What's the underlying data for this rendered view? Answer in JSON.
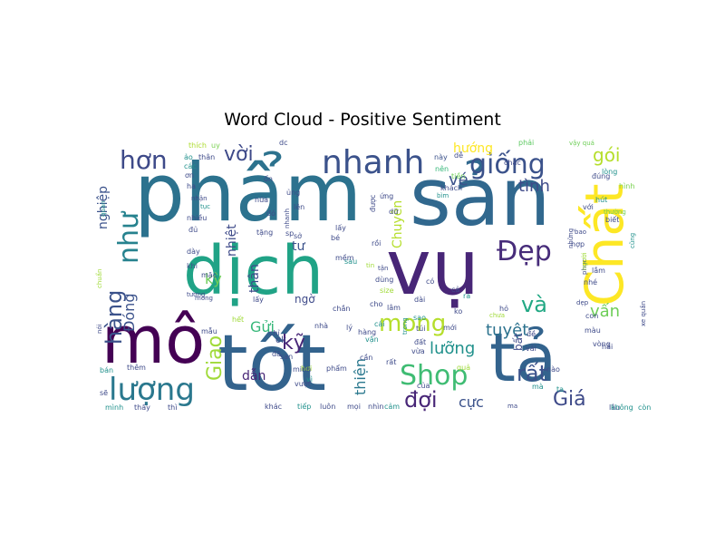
{
  "chart_data": {
    "type": "wordcloud",
    "title": "Word Cloud - Positive Sentiment",
    "colormap": "viridis",
    "background": "#ffffff",
    "words": [
      {
        "text": "phẩm",
        "size": 88,
        "color": "#2c728e",
        "rotate": 0
      },
      {
        "text": "sản",
        "size": 88,
        "color": "#31688e",
        "rotate": 0
      },
      {
        "text": "vụ",
        "size": 84,
        "color": "#482677",
        "rotate": 0
      },
      {
        "text": "tốt",
        "size": 86,
        "color": "#33638d",
        "rotate": 0
      },
      {
        "text": "dịch",
        "size": 74,
        "color": "#20a386",
        "rotate": 0
      },
      {
        "text": "mô",
        "size": 72,
        "color": "#440154",
        "rotate": 0
      },
      {
        "text": "tả",
        "size": 74,
        "color": "#33638d",
        "rotate": 0
      },
      {
        "text": "Chất",
        "size": 58,
        "color": "#fde725",
        "rotate": -90
      },
      {
        "text": "nhanh",
        "size": 36,
        "color": "#3b528b",
        "rotate": 0
      },
      {
        "text": "giống",
        "size": 30,
        "color": "#3b528b",
        "rotate": 0
      },
      {
        "text": "hơn",
        "size": 28,
        "color": "#3e4a89",
        "rotate": 0
      },
      {
        "text": "Đẹp",
        "size": 30,
        "color": "#472c7a",
        "rotate": 0
      },
      {
        "text": "lượng",
        "size": 34,
        "color": "#2a788e",
        "rotate": 0
      },
      {
        "text": "Shop",
        "size": 30,
        "color": "#3fbc73",
        "rotate": 0
      },
      {
        "text": "mong",
        "size": 26,
        "color": "#b5de2b",
        "rotate": 0
      },
      {
        "text": "như",
        "size": 30,
        "color": "#26828e",
        "rotate": -90
      },
      {
        "text": "hàng",
        "size": 24,
        "color": "#3b528b",
        "rotate": -90
      },
      {
        "text": "vời",
        "size": 22,
        "color": "#3e4a89",
        "rotate": 0
      },
      {
        "text": "rất",
        "size": 24,
        "color": "#3b528b",
        "rotate": 0
      },
      {
        "text": "Giá",
        "size": 22,
        "color": "#3e4a89",
        "rotate": 0
      },
      {
        "text": "đợi",
        "size": 24,
        "color": "#482677",
        "rotate": 0
      },
      {
        "text": "và",
        "size": 24,
        "color": "#22a884",
        "rotate": 0
      },
      {
        "text": "tuyệt",
        "size": 18,
        "color": "#2c728e",
        "rotate": 0
      },
      {
        "text": "gói",
        "size": 20,
        "color": "#b5de2b",
        "rotate": 0
      },
      {
        "text": "Giao",
        "size": 22,
        "color": "#a0da39",
        "rotate": -90
      },
      {
        "text": "vé",
        "size": 18,
        "color": "#3b528b",
        "rotate": 0
      },
      {
        "text": "tình",
        "size": 18,
        "color": "#3e4a89",
        "rotate": 0
      },
      {
        "text": "hướng",
        "size": 14,
        "color": "#fde725",
        "rotate": 0
      },
      {
        "text": "Gửi",
        "size": 16,
        "color": "#35b779",
        "rotate": 0
      },
      {
        "text": "kỹ",
        "size": 22,
        "color": "#482677",
        "rotate": 0
      },
      {
        "text": "kỳ",
        "size": 16,
        "color": "#6ece58",
        "rotate": 0
      },
      {
        "text": "lưỡng",
        "size": 18,
        "color": "#21918c",
        "rotate": 0
      },
      {
        "text": "vấn",
        "size": 18,
        "color": "#6ece58",
        "rotate": 0
      },
      {
        "text": "cực",
        "size": 16,
        "color": "#3b528b",
        "rotate": 0
      },
      {
        "text": "thiện",
        "size": 16,
        "color": "#2a788e",
        "rotate": -90
      },
      {
        "text": "nghiệp",
        "size": 14,
        "color": "#3b528b",
        "rotate": -90
      },
      {
        "text": "Đóng",
        "size": 16,
        "color": "#3b528b",
        "rotate": -90
      },
      {
        "text": "Chuyên",
        "size": 14,
        "color": "#b5de2b",
        "rotate": -90
      },
      {
        "text": "nhiệt",
        "size": 14,
        "color": "#3e4a89",
        "rotate": -90
      },
      {
        "text": "thân",
        "size": 14,
        "color": "#3e4a89",
        "rotate": -90
      },
      {
        "text": "dẫn",
        "size": 14,
        "color": "#482677",
        "rotate": 0
      },
      {
        "text": "tư",
        "size": 14,
        "color": "#3b528b",
        "rotate": 0
      },
      {
        "text": "ngờ",
        "size": 12,
        "color": "#3e4a89",
        "rotate": 0
      },
      {
        "text": "bất",
        "size": 12,
        "color": "#3e4a89",
        "rotate": -90
      },
      {
        "text": "thích",
        "size": 8,
        "color": "#addc30",
        "rotate": 0
      },
      {
        "text": "uy",
        "size": 8,
        "color": "#7ad151",
        "rotate": 0
      },
      {
        "text": "dc",
        "size": 8,
        "color": "#3e4a89",
        "rotate": 0
      },
      {
        "text": "phải",
        "size": 8,
        "color": "#5ec962",
        "rotate": 0
      },
      {
        "text": "vậy quá",
        "size": 7,
        "color": "#6ece58",
        "rotate": 0
      },
      {
        "text": "này",
        "size": 8,
        "color": "#3b528b",
        "rotate": 0
      },
      {
        "text": "dễ",
        "size": 8,
        "color": "#3e4a89",
        "rotate": 0
      },
      {
        "text": "chắc",
        "size": 8,
        "color": "#3e4a89",
        "rotate": 0
      },
      {
        "text": "nên",
        "size": 8,
        "color": "#35b779",
        "rotate": 0
      },
      {
        "text": "tiền",
        "size": 8,
        "color": "#6ece58",
        "rotate": 0
      },
      {
        "text": "khách",
        "size": 8,
        "color": "#3e4a89",
        "rotate": 0
      },
      {
        "text": "bìm",
        "size": 7,
        "color": "#21918c",
        "rotate": 0
      },
      {
        "text": "đúng",
        "size": 8,
        "color": "#3e4a89",
        "rotate": 0
      },
      {
        "text": "lòng",
        "size": 8,
        "color": "#21918c",
        "rotate": 0
      },
      {
        "text": "hình",
        "size": 8,
        "color": "#7ad151",
        "rotate": 0
      },
      {
        "text": "thường",
        "size": 7,
        "color": "#6ece58",
        "rotate": 0
      },
      {
        "text": "hút",
        "size": 8,
        "color": "#21918c",
        "rotate": 0
      },
      {
        "text": "với",
        "size": 8,
        "color": "#3e4a89",
        "rotate": 0
      },
      {
        "text": "những",
        "size": 7,
        "color": "#3e4a89",
        "rotate": -90
      },
      {
        "text": "cũng",
        "size": 7,
        "color": "#21918c",
        "rotate": -90
      },
      {
        "text": "biết",
        "size": 8,
        "color": "#3e4a89",
        "rotate": 0
      },
      {
        "text": "bao",
        "size": 7,
        "color": "#3e4a89",
        "rotate": 0
      },
      {
        "text": "hợp",
        "size": 8,
        "color": "#3e4a89",
        "rotate": 0
      },
      {
        "text": "phục",
        "size": 7,
        "color": "#3e4a89",
        "rotate": -90
      },
      {
        "text": "lắm",
        "size": 8,
        "color": "#3e4a89",
        "rotate": 0
      },
      {
        "text": "người",
        "size": 7,
        "color": "#a0da39",
        "rotate": -90
      },
      {
        "text": "nhé",
        "size": 8,
        "color": "#3e4a89",
        "rotate": 0
      },
      {
        "text": "dẹp",
        "size": 7,
        "color": "#3e4a89",
        "rotate": 0
      },
      {
        "text": "con",
        "size": 8,
        "color": "#3e4a89",
        "rotate": 0
      },
      {
        "text": "màu",
        "size": 8,
        "color": "#3e4a89",
        "rotate": 0
      },
      {
        "text": "xe quần",
        "size": 7,
        "color": "#3e4a89",
        "rotate": -90
      },
      {
        "text": "vòng",
        "size": 8,
        "color": "#3e4a89",
        "rotate": 0
      },
      {
        "text": "hài",
        "size": 8,
        "color": "#3e4a89",
        "rotate": 0
      },
      {
        "text": "đề",
        "size": 8,
        "color": "#3e4a89",
        "rotate": 0
      },
      {
        "text": "vải",
        "size": 8,
        "color": "#3e4a89",
        "rotate": 0
      },
      {
        "text": "mà",
        "size": 8,
        "color": "#21918c",
        "rotate": 0
      },
      {
        "text": "nào",
        "size": 8,
        "color": "#3e4a89",
        "rotate": 0
      },
      {
        "text": "ta",
        "size": 8,
        "color": "#21918c",
        "rotate": 0
      },
      {
        "text": "lâu",
        "size": 8,
        "color": "#3e4a89",
        "rotate": 0
      },
      {
        "text": "không",
        "size": 8,
        "color": "#21918c",
        "rotate": 0
      },
      {
        "text": "còn",
        "size": 8,
        "color": "#21918c",
        "rotate": 0
      },
      {
        "text": "ma",
        "size": 7,
        "color": "#3e4a89",
        "rotate": 0
      },
      {
        "text": "ảo",
        "size": 8,
        "color": "#21918c",
        "rotate": 0
      },
      {
        "text": "các",
        "size": 8,
        "color": "#21918c",
        "rotate": 0
      },
      {
        "text": "ơn",
        "size": 8,
        "color": "#3e4a89",
        "rotate": 0
      },
      {
        "text": "thân",
        "size": 8,
        "color": "#3e4a89",
        "rotate": 0
      },
      {
        "text": "quan",
        "size": 7,
        "color": "#21918c",
        "rotate": -90
      },
      {
        "text": "ha",
        "size": 8,
        "color": "#3e4a89",
        "rotate": 0
      },
      {
        "text": "nhận",
        "size": 7,
        "color": "#3e4a89",
        "rotate": 0
      },
      {
        "text": "tục",
        "size": 7,
        "color": "#21918c",
        "rotate": 0
      },
      {
        "text": "nhiều",
        "size": 8,
        "color": "#3e4a89",
        "rotate": 0
      },
      {
        "text": "đủ",
        "size": 8,
        "color": "#3e4a89",
        "rotate": 0
      },
      {
        "text": "chuẩn",
        "size": 7,
        "color": "#a0da39",
        "rotate": -90
      },
      {
        "text": "dày",
        "size": 8,
        "color": "#3e4a89",
        "rotate": 0
      },
      {
        "text": "khi",
        "size": 8,
        "color": "#3e4a89",
        "rotate": 0
      },
      {
        "text": "mặc",
        "size": 8,
        "color": "#3e4a89",
        "rotate": 0
      },
      {
        "text": "tương",
        "size": 7,
        "color": "#3e4a89",
        "rotate": 0
      },
      {
        "text": "lấy",
        "size": 8,
        "color": "#3e4a89",
        "rotate": 0
      },
      {
        "text": "mong",
        "size": 7,
        "color": "#3e4a89",
        "rotate": 0
      },
      {
        "text": "nói",
        "size": 7,
        "color": "#3e4a89",
        "rotate": -90
      },
      {
        "text": "hết",
        "size": 8,
        "color": "#a0da39",
        "rotate": 0
      },
      {
        "text": "chỉ",
        "size": 8,
        "color": "#3e4a89",
        "rotate": 0
      },
      {
        "text": "mẫu",
        "size": 8,
        "color": "#3e4a89",
        "rotate": 0
      },
      {
        "text": "ok",
        "size": 10,
        "color": "#3e4a89",
        "rotate": 0
      },
      {
        "text": "đã",
        "size": 8,
        "color": "#3e4a89",
        "rotate": 0
      },
      {
        "text": "bán",
        "size": 8,
        "color": "#21918c",
        "rotate": 0
      },
      {
        "text": "thêm",
        "size": 8,
        "color": "#3e4a89",
        "rotate": 0
      },
      {
        "text": "sẽ",
        "size": 8,
        "color": "#3e4a89",
        "rotate": 0
      },
      {
        "text": "mình",
        "size": 8,
        "color": "#21918c",
        "rotate": 0
      },
      {
        "text": "thấy",
        "size": 8,
        "color": "#3e4a89",
        "rotate": 0
      },
      {
        "text": "thì",
        "size": 8,
        "color": "#3e4a89",
        "rotate": 0
      },
      {
        "text": "san",
        "size": 8,
        "color": "#3e4a89",
        "rotate": 0
      },
      {
        "text": "hơi",
        "size": 8,
        "color": "#a0da39",
        "rotate": 0
      },
      {
        "text": "minh",
        "size": 8,
        "color": "#3e4a89",
        "rotate": 0
      },
      {
        "text": "vượt",
        "size": 8,
        "color": "#3e4a89",
        "rotate": 0
      },
      {
        "text": "vì",
        "size": 8,
        "color": "#21918c",
        "rotate": 0
      },
      {
        "text": "khác",
        "size": 8,
        "color": "#3e4a89",
        "rotate": 0
      },
      {
        "text": "tiếp",
        "size": 8,
        "color": "#21918c",
        "rotate": 0
      },
      {
        "text": "luôn",
        "size": 8,
        "color": "#3e4a89",
        "rotate": 0
      },
      {
        "text": "mọi",
        "size": 8,
        "color": "#3e4a89",
        "rotate": 0
      },
      {
        "text": "nhìn",
        "size": 8,
        "color": "#3e4a89",
        "rotate": 0
      },
      {
        "text": "cảm",
        "size": 8,
        "color": "#21918c",
        "rotate": 0
      },
      {
        "text": "rất",
        "size": 8,
        "color": "#3e4a89",
        "rotate": 0
      },
      {
        "text": "quả",
        "size": 8,
        "color": "#a0da39",
        "rotate": 0
      },
      {
        "text": "của",
        "size": 8,
        "color": "#3e4a89",
        "rotate": 0
      },
      {
        "text": "trong",
        "size": 7,
        "color": "#21918c",
        "rotate": -90
      },
      {
        "text": "đất",
        "size": 8,
        "color": "#3e4a89",
        "rotate": 0
      },
      {
        "text": "vừa",
        "size": 8,
        "color": "#3e4a89",
        "rotate": 0
      },
      {
        "text": "cần",
        "size": 8,
        "color": "#3e4a89",
        "rotate": 0
      },
      {
        "text": "phẩm",
        "size": 8,
        "color": "#3e4a89",
        "rotate": 0
      },
      {
        "text": "chắn",
        "size": 8,
        "color": "#3e4a89",
        "rotate": 0
      },
      {
        "text": "nhà",
        "size": 8,
        "color": "#3e4a89",
        "rotate": 0
      },
      {
        "text": "lý",
        "size": 8,
        "color": "#3e4a89",
        "rotate": 0
      },
      {
        "text": "hàng",
        "size": 8,
        "color": "#3e4a89",
        "rotate": 0
      },
      {
        "text": "vận",
        "size": 8,
        "color": "#21918c",
        "rotate": 0
      },
      {
        "text": "sao",
        "size": 8,
        "color": "#21918c",
        "rotate": 0
      },
      {
        "text": "lâm",
        "size": 8,
        "color": "#3e4a89",
        "rotate": 0
      },
      {
        "text": "dài",
        "size": 8,
        "color": "#3e4a89",
        "rotate": 0
      },
      {
        "text": "có",
        "size": 8,
        "color": "#3e4a89",
        "rotate": 0
      },
      {
        "text": "cả",
        "size": 8,
        "color": "#3e4a89",
        "rotate": 0
      },
      {
        "text": "ra",
        "size": 8,
        "color": "#21918c",
        "rotate": 0
      },
      {
        "text": "ko",
        "size": 8,
        "color": "#3e4a89",
        "rotate": 0
      },
      {
        "text": "size",
        "size": 8,
        "color": "#a0da39",
        "rotate": 0
      },
      {
        "text": "cho",
        "size": 8,
        "color": "#3e4a89",
        "rotate": 0
      },
      {
        "text": "cái",
        "size": 8,
        "color": "#21918c",
        "rotate": 0
      },
      {
        "text": "túi",
        "size": 8,
        "color": "#3e4a89",
        "rotate": 0
      },
      {
        "text": "mới",
        "size": 8,
        "color": "#3e4a89",
        "rotate": 0
      },
      {
        "text": "hỏ",
        "size": 8,
        "color": "#3e4a89",
        "rotate": 0
      },
      {
        "text": "chưa",
        "size": 7,
        "color": "#a0da39",
        "rotate": 0
      },
      {
        "text": "tin",
        "size": 7,
        "color": "#a0da39",
        "rotate": 0
      },
      {
        "text": "rồi",
        "size": 8,
        "color": "#3e4a89",
        "rotate": 0
      },
      {
        "text": "tận",
        "size": 7,
        "color": "#3e4a89",
        "rotate": 0
      },
      {
        "text": "dùng",
        "size": 8,
        "color": "#3e4a89",
        "rotate": 0
      },
      {
        "text": "tặng",
        "size": 8,
        "color": "#3e4a89",
        "rotate": 0
      },
      {
        "text": "sp",
        "size": 8,
        "color": "#3e4a89",
        "rotate": 0
      },
      {
        "text": "lấy",
        "size": 8,
        "color": "#3e4a89",
        "rotate": 0
      },
      {
        "text": "bé",
        "size": 8,
        "color": "#3e4a89",
        "rotate": 0
      },
      {
        "text": "mềm",
        "size": 8,
        "color": "#3e4a89",
        "rotate": 0
      },
      {
        "text": "sau",
        "size": 8,
        "color": "#21918c",
        "rotate": 0
      },
      {
        "text": "ứng",
        "size": 8,
        "color": "#3e4a89",
        "rotate": 0
      },
      {
        "text": "được",
        "size": 8,
        "color": "#3e4a89",
        "rotate": -90
      },
      {
        "text": "dữ",
        "size": 8,
        "color": "#3e4a89",
        "rotate": 0
      },
      {
        "text": "ủng",
        "size": 8,
        "color": "#3e4a89",
        "rotate": 0
      },
      {
        "text": "lên",
        "size": 8,
        "color": "#3e4a89",
        "rotate": 0
      },
      {
        "text": "sở",
        "size": 8,
        "color": "#3e4a89",
        "rotate": 0
      },
      {
        "text": "nữa",
        "size": 8,
        "color": "#3e4a89",
        "rotate": 0
      },
      {
        "text": "ổn",
        "size": 8,
        "color": "#3e4a89",
        "rotate": 0
      },
      {
        "text": "nhanh",
        "size": 7,
        "color": "#3e4a89",
        "rotate": -90
      },
      {
        "text": "đó",
        "size": 8,
        "color": "#3e4a89",
        "rotate": 0
      }
    ]
  }
}
